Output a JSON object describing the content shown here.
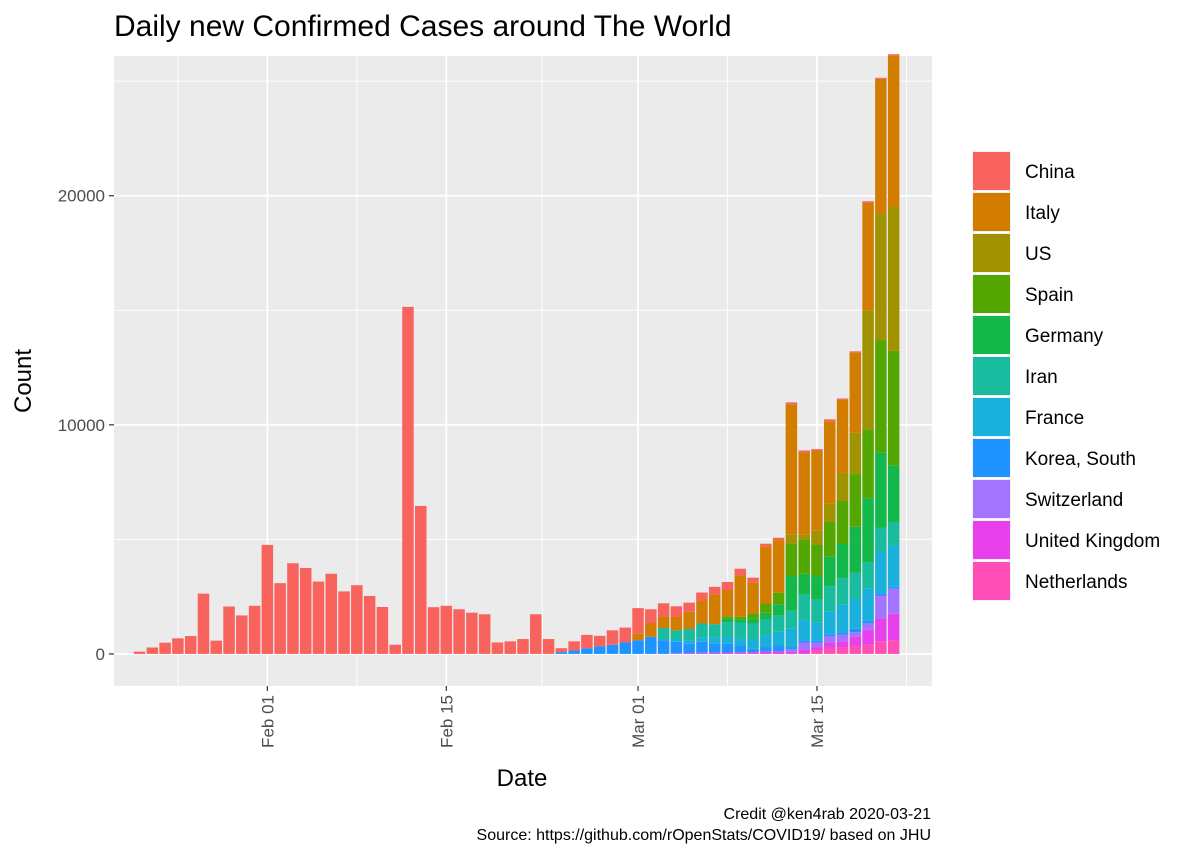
{
  "chart_data": {
    "type": "bar",
    "stacked": true,
    "title": "Daily new Confirmed Cases around The World",
    "xlabel": "Date",
    "ylabel": "Count",
    "x_tick_labels": [
      {
        "date": "2020-02-01",
        "label": "Feb 01"
      },
      {
        "date": "2020-02-15",
        "label": "Feb 15"
      },
      {
        "date": "2020-03-01",
        "label": "Mar 01"
      },
      {
        "date": "2020-03-15",
        "label": "Mar 15"
      }
    ],
    "y_ticks": [
      0,
      10000,
      20000
    ],
    "ylim": [
      -1400,
      26100
    ],
    "xlim": [
      "2020-01-20",
      "2020-03-24"
    ],
    "grid": true,
    "legend_position": "right",
    "dates": [
      "2020-01-22",
      "2020-01-23",
      "2020-01-24",
      "2020-01-25",
      "2020-01-26",
      "2020-01-27",
      "2020-01-28",
      "2020-01-29",
      "2020-01-30",
      "2020-01-31",
      "2020-02-01",
      "2020-02-02",
      "2020-02-03",
      "2020-02-04",
      "2020-02-05",
      "2020-02-06",
      "2020-02-07",
      "2020-02-08",
      "2020-02-09",
      "2020-02-10",
      "2020-02-11",
      "2020-02-12",
      "2020-02-13",
      "2020-02-14",
      "2020-02-15",
      "2020-02-16",
      "2020-02-17",
      "2020-02-18",
      "2020-02-19",
      "2020-02-20",
      "2020-02-21",
      "2020-02-22",
      "2020-02-23",
      "2020-02-24",
      "2020-02-25",
      "2020-02-26",
      "2020-02-27",
      "2020-02-28",
      "2020-02-29",
      "2020-03-01",
      "2020-03-02",
      "2020-03-03",
      "2020-03-04",
      "2020-03-05",
      "2020-03-06",
      "2020-03-07",
      "2020-03-08",
      "2020-03-09",
      "2020-03-10",
      "2020-03-11",
      "2020-03-12",
      "2020-03-13",
      "2020-03-14",
      "2020-03-15",
      "2020-03-16",
      "2020-03-17",
      "2020-03-18",
      "2020-03-19",
      "2020-03-20",
      "2020-03-21"
    ],
    "series": [
      {
        "name": "Netherlands",
        "color": "#FF4FB6",
        "values": [
          0,
          0,
          0,
          0,
          0,
          0,
          0,
          0,
          0,
          0,
          0,
          0,
          0,
          0,
          0,
          0,
          0,
          0,
          0,
          0,
          0,
          0,
          0,
          0,
          0,
          0,
          0,
          0,
          0,
          0,
          0,
          0,
          0,
          0,
          0,
          0,
          0,
          0,
          0,
          0,
          0,
          0,
          0,
          0,
          0,
          0,
          0,
          0,
          0,
          0,
          0,
          0,
          0,
          150,
          280,
          300,
          350,
          400,
          550,
          600
        ]
      },
      {
        "name": "United Kingdom",
        "color": "#E840EC",
        "values": [
          0,
          0,
          0,
          0,
          0,
          0,
          0,
          0,
          0,
          0,
          0,
          0,
          0,
          0,
          0,
          0,
          0,
          0,
          0,
          0,
          0,
          0,
          0,
          0,
          0,
          0,
          0,
          0,
          0,
          0,
          0,
          0,
          0,
          0,
          0,
          0,
          0,
          0,
          0,
          0,
          0,
          0,
          30,
          40,
          50,
          50,
          60,
          70,
          80,
          100,
          120,
          100,
          200,
          150,
          200,
          250,
          400,
          650,
          1000,
          1150
        ]
      },
      {
        "name": "Switzerland",
        "color": "#A374FF",
        "values": [
          0,
          0,
          0,
          0,
          0,
          0,
          0,
          0,
          0,
          0,
          0,
          0,
          0,
          0,
          0,
          0,
          0,
          0,
          0,
          0,
          0,
          0,
          0,
          0,
          0,
          0,
          0,
          0,
          0,
          0,
          0,
          0,
          0,
          0,
          0,
          0,
          0,
          0,
          0,
          0,
          0,
          0,
          0,
          0,
          0,
          0,
          0,
          0,
          0,
          0,
          0,
          100,
          300,
          200,
          300,
          300,
          200,
          300,
          1000,
          1100
        ]
      },
      {
        "name": "Korea, South",
        "color": "#1F93FF",
        "values": [
          0,
          0,
          0,
          0,
          0,
          0,
          0,
          0,
          0,
          0,
          0,
          0,
          0,
          0,
          0,
          0,
          0,
          0,
          0,
          0,
          0,
          0,
          0,
          0,
          0,
          0,
          0,
          0,
          0,
          0,
          0,
          0,
          0,
          80,
          150,
          250,
          330,
          400,
          500,
          600,
          750,
          600,
          500,
          400,
          480,
          400,
          380,
          300,
          150,
          200,
          250,
          100,
          100,
          80,
          80,
          100,
          150,
          100,
          100,
          80
        ]
      },
      {
        "name": "France",
        "color": "#19B0DB",
        "values": [
          0,
          0,
          0,
          0,
          0,
          0,
          0,
          0,
          0,
          0,
          0,
          0,
          0,
          0,
          0,
          0,
          0,
          0,
          0,
          0,
          0,
          0,
          0,
          0,
          0,
          0,
          0,
          0,
          0,
          0,
          0,
          0,
          0,
          0,
          0,
          0,
          0,
          0,
          0,
          0,
          0,
          30,
          100,
          150,
          200,
          250,
          300,
          300,
          400,
          500,
          600,
          800,
          900,
          800,
          1000,
          1200,
          1300,
          1400,
          1800,
          1800
        ]
      },
      {
        "name": "Iran",
        "color": "#19BC9E",
        "values": [
          0,
          0,
          0,
          0,
          0,
          0,
          0,
          0,
          0,
          0,
          0,
          0,
          0,
          0,
          0,
          0,
          0,
          0,
          0,
          0,
          0,
          0,
          0,
          0,
          0,
          0,
          0,
          0,
          0,
          0,
          0,
          0,
          0,
          0,
          0,
          0,
          0,
          0,
          0,
          0,
          0,
          500,
          400,
          500,
          600,
          600,
          650,
          700,
          700,
          700,
          700,
          800,
          1100,
          1000,
          1100,
          1150,
          1150,
          1150,
          1050,
          1000
        ]
      },
      {
        "name": "Germany",
        "color": "#14B84A",
        "values": [
          0,
          0,
          0,
          0,
          0,
          0,
          0,
          0,
          0,
          0,
          0,
          0,
          0,
          0,
          0,
          0,
          0,
          0,
          0,
          0,
          0,
          0,
          0,
          0,
          0,
          0,
          0,
          0,
          0,
          0,
          0,
          0,
          0,
          0,
          0,
          0,
          0,
          0,
          0,
          0,
          0,
          0,
          0,
          0,
          0,
          0,
          150,
          150,
          200,
          300,
          500,
          1500,
          900,
          1000,
          1300,
          1500,
          2000,
          2800,
          3300,
          2500
        ]
      },
      {
        "name": "Spain",
        "color": "#53A700",
        "values": [
          0,
          0,
          0,
          0,
          0,
          0,
          0,
          0,
          0,
          0,
          0,
          0,
          0,
          0,
          0,
          0,
          0,
          0,
          0,
          0,
          0,
          0,
          0,
          0,
          0,
          0,
          0,
          0,
          0,
          0,
          0,
          0,
          0,
          0,
          0,
          0,
          0,
          0,
          0,
          0,
          0,
          0,
          0,
          0,
          0,
          0,
          100,
          100,
          250,
          400,
          500,
          1400,
          1500,
          1400,
          1500,
          1900,
          2300,
          3000,
          4900,
          5000
        ]
      },
      {
        "name": "US",
        "color": "#A19200",
        "values": [
          0,
          0,
          0,
          0,
          0,
          0,
          0,
          0,
          0,
          0,
          0,
          0,
          0,
          0,
          0,
          0,
          0,
          0,
          0,
          0,
          0,
          0,
          0,
          0,
          0,
          0,
          0,
          0,
          0,
          0,
          0,
          0,
          0,
          0,
          0,
          0,
          0,
          0,
          0,
          0,
          0,
          0,
          0,
          0,
          0,
          0,
          0,
          0,
          0,
          0,
          0,
          400,
          200,
          600,
          800,
          1200,
          1800,
          5200,
          5500,
          6300
        ]
      },
      {
        "name": "Italy",
        "color": "#D37D00",
        "values": [
          0,
          0,
          0,
          0,
          0,
          0,
          0,
          0,
          0,
          0,
          0,
          0,
          0,
          0,
          0,
          0,
          0,
          0,
          0,
          0,
          0,
          0,
          0,
          0,
          0,
          0,
          0,
          0,
          0,
          0,
          0,
          0,
          0,
          0,
          0,
          0,
          0,
          0,
          0,
          300,
          600,
          500,
          600,
          750,
          1000,
          1300,
          1150,
          1800,
          1350,
          2500,
          2300,
          5700,
          3600,
          3500,
          3600,
          3200,
          3500,
          4700,
          5900,
          6600
        ]
      },
      {
        "name": "China",
        "color": "#F8635E",
        "values": [
          100,
          280,
          490,
          680,
          780,
          2630,
          580,
          2070,
          1680,
          2100,
          4760,
          3090,
          3960,
          3750,
          3160,
          3500,
          2730,
          3000,
          2530,
          2050,
          400,
          15150,
          6460,
          2040,
          2100,
          1950,
          1800,
          1730,
          500,
          550,
          650,
          1730,
          650,
          170,
          400,
          580,
          460,
          630,
          650,
          1100,
          600,
          580,
          450,
          400,
          350,
          330,
          350,
          300,
          200,
          110,
          100,
          80,
          80,
          60,
          80,
          50,
          60,
          60,
          50,
          50
        ]
      }
    ],
    "legend_order": [
      "China",
      "Italy",
      "US",
      "Spain",
      "Germany",
      "Iran",
      "France",
      "Korea, South",
      "Switzerland",
      "United Kingdom",
      "Netherlands"
    ]
  },
  "caption": {
    "credit": "Credit @ken4rab 2020-03-21",
    "source": "Source: https://github.com/rOpenStats/COVID19/ based on JHU"
  }
}
